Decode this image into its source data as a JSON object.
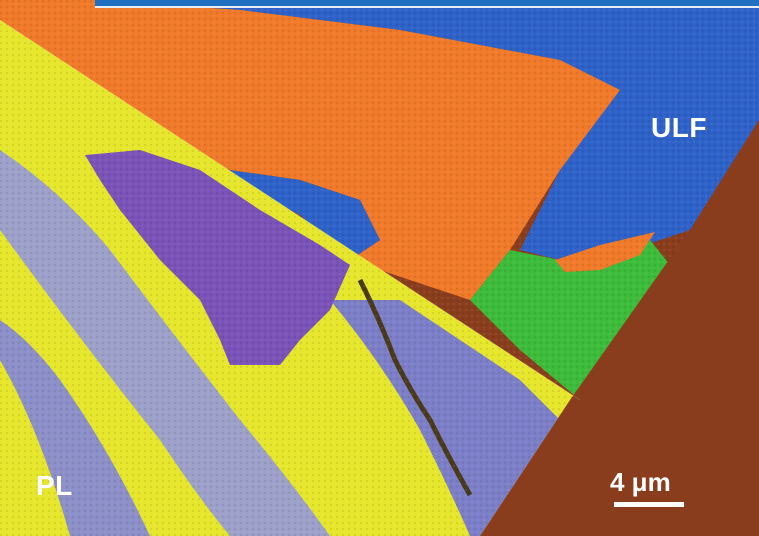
{
  "labels": {
    "upper_right": "ULF",
    "lower_left": "PL"
  },
  "scale_bar": {
    "text": "4 μm"
  },
  "colors": {
    "substrate": "#8a3d1c",
    "ulf_orange": "#f07a2a",
    "ulf_blue": "#2e62c8",
    "ulf_green": "#3dbb3a",
    "pl_yellow": "#e6e62c",
    "pl_lavender": "#8c8fc8",
    "pl_purple": "#7a52b8",
    "top_bar": "#1f6fc0"
  }
}
